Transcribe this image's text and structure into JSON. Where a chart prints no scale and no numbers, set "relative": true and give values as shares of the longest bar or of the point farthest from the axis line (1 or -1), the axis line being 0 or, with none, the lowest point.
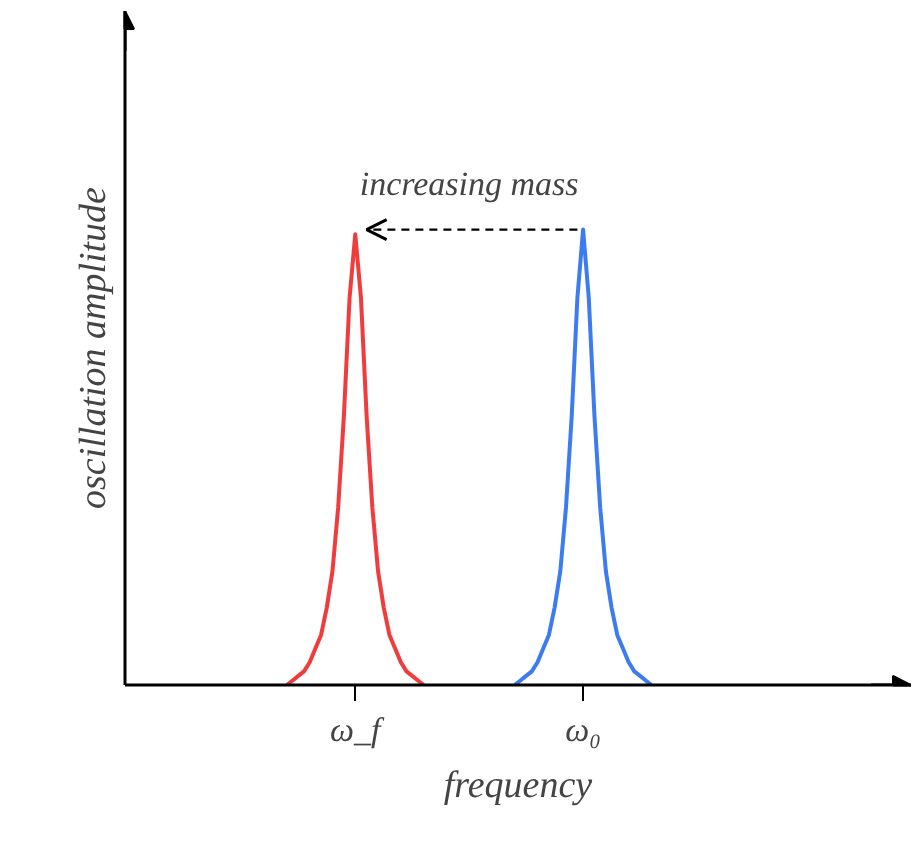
{
  "chart_data": {
    "type": "line",
    "relative": true,
    "xlabel": "frequency",
    "ylabel": "oscillation amplitude",
    "categories": [
      null,
      null,
      null,
      null,
      null,
      null,
      null,
      null,
      null,
      null,
      null,
      null,
      null,
      null,
      "ω_f",
      null,
      null,
      null,
      null,
      null,
      null,
      null,
      null,
      null,
      null,
      null,
      null,
      null,
      null,
      null,
      null,
      null,
      null,
      null,
      null,
      null,
      null,
      null,
      null,
      null,
      null,
      null,
      null,
      null,
      null,
      null,
      null,
      null,
      null,
      null,
      null,
      null,
      null,
      null,
      "ω₀",
      null,
      null,
      null,
      null,
      null,
      null,
      null,
      null,
      null,
      null,
      null,
      null,
      null,
      null
    ],
    "tick_labels": "x",
    "grid": false,
    "marker": "none",
    "line_style": "solid",
    "annotations": [
      "increasing mass"
    ],
    "series": [
      {
        "color": "#f03c3c",
        "values": [
          null,
          null,
          0,
          0.01,
          0.02,
          0.03,
          0.05,
          0.08,
          0.11,
          0.17,
          0.25,
          0.39,
          0.59,
          0.85,
          0.99,
          0.85,
          0.59,
          0.39,
          0.25,
          0.17,
          0.11,
          0.08,
          0.05,
          0.03,
          0.02,
          0.01,
          0,
          null,
          null,
          null,
          null,
          null,
          null,
          null,
          null,
          null,
          null,
          null,
          null,
          null,
          null,
          null,
          null,
          null,
          null,
          null,
          null,
          null,
          null,
          null,
          null,
          null,
          null,
          null,
          null,
          null,
          null,
          null,
          null,
          null,
          null,
          null,
          null,
          null,
          null,
          null,
          null,
          null,
          null
        ]
      },
      {
        "color": "#3c7cf0",
        "values": [
          null,
          null,
          null,
          null,
          null,
          null,
          null,
          null,
          null,
          null,
          null,
          null,
          null,
          null,
          null,
          null,
          null,
          null,
          null,
          null,
          null,
          null,
          null,
          null,
          null,
          null,
          null,
          null,
          null,
          null,
          null,
          null,
          null,
          null,
          null,
          null,
          null,
          null,
          null,
          null,
          null,
          null,
          0,
          0.01,
          0.02,
          0.03,
          0.05,
          0.08,
          0.11,
          0.17,
          0.25,
          0.39,
          0.59,
          0.85,
          1,
          0.85,
          0.59,
          0.39,
          0.25,
          0.17,
          0.11,
          0.08,
          0.05,
          0.03,
          0.02,
          0.01,
          0,
          null,
          null
        ]
      }
    ]
  }
}
